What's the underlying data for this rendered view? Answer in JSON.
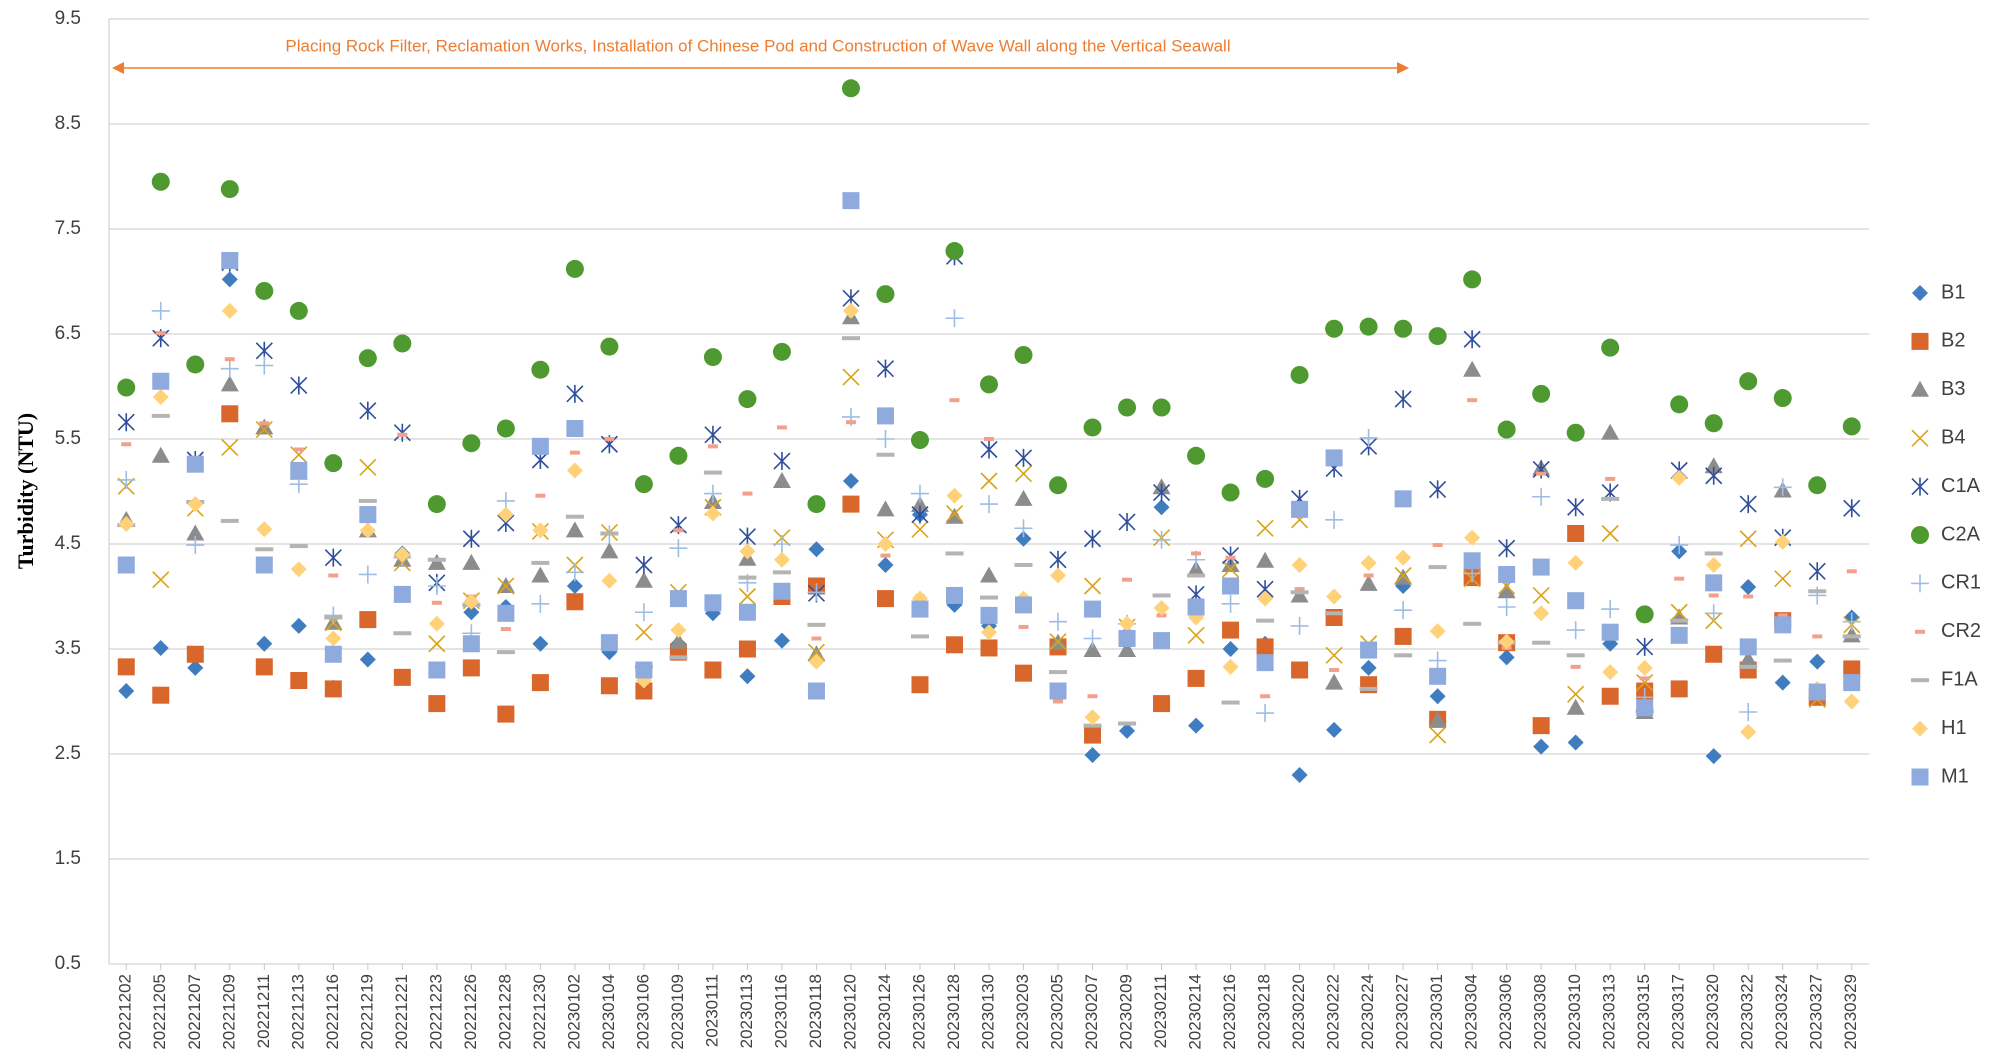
{
  "chart_data": {
    "type": "scatter",
    "y_label": "Turbidity (NTU)",
    "annotation": "Placing Rock Filter, Reclamation Works, Installation of Chinese Pod and Construction of Wave Wall along the Vertical Seawall",
    "categories": [
      "20221202",
      "20221205",
      "20221207",
      "20221209",
      "20221211",
      "20221213",
      "20221216",
      "20221219",
      "20221221",
      "20221223",
      "20221226",
      "20221228",
      "20221230",
      "20230102",
      "20230104",
      "20230106",
      "20230109",
      "20230111",
      "20230113",
      "20230116",
      "20230118",
      "20230120",
      "20230124",
      "20230126",
      "20230128",
      "20230130",
      "20230203",
      "20230205",
      "20230207",
      "20230209",
      "20230211",
      "20230214",
      "20230216",
      "20230218",
      "20230220",
      "20230222",
      "20230224",
      "20230227",
      "20230301",
      "20230304",
      "20230306",
      "20230308",
      "20230310",
      "20230313",
      "20230315",
      "20230317",
      "20230320",
      "20230322",
      "20230324",
      "20230327",
      "20230329"
    ],
    "ylim": [
      0.5,
      9.5
    ],
    "yticks": [
      0.5,
      1.5,
      2.5,
      3.5,
      4.5,
      5.5,
      6.5,
      7.5,
      8.5,
      9.5
    ],
    "grid": true,
    "legend": "right",
    "series": [
      {
        "name": "B1",
        "color": "#3f7cc0",
        "marker": "diamond",
        "values": [
          3.1,
          3.51,
          3.32,
          7.02,
          3.55,
          3.72,
          3.13,
          3.4,
          4.41,
          3.3,
          3.85,
          3.9,
          3.55,
          4.1,
          3.47,
          3.15,
          3.55,
          3.84,
          3.24,
          3.58,
          4.45,
          5.1,
          4.3,
          4.78,
          3.92,
          3.72,
          4.55,
          3.54,
          2.49,
          2.72,
          4.85,
          2.77,
          3.5,
          3.55,
          2.3,
          2.73,
          3.32,
          4.1,
          3.05,
          4.2,
          3.42,
          2.57,
          2.61,
          3.55,
          3.0,
          4.43,
          2.48,
          4.09,
          3.18,
          3.38,
          3.8
        ]
      },
      {
        "name": "B2",
        "color": "#d9662a",
        "marker": "square",
        "values": [
          3.33,
          3.06,
          3.45,
          5.74,
          3.33,
          3.2,
          3.12,
          3.78,
          3.23,
          2.98,
          3.32,
          2.88,
          3.18,
          3.95,
          3.15,
          3.1,
          3.47,
          3.3,
          3.5,
          4.0,
          4.1,
          4.88,
          3.98,
          3.16,
          3.54,
          3.51,
          3.27,
          3.52,
          2.68,
          3.6,
          2.98,
          3.22,
          3.68,
          3.52,
          3.3,
          3.8,
          3.16,
          3.62,
          2.83,
          4.18,
          3.56,
          2.77,
          4.6,
          3.05,
          3.1,
          3.12,
          3.45,
          3.3,
          3.77,
          3.04,
          3.31
        ]
      },
      {
        "name": "B3",
        "color": "#8c8c8c",
        "marker": "triangle",
        "values": [
          4.73,
          5.34,
          4.6,
          6.02,
          5.61,
          5.18,
          3.75,
          4.63,
          4.35,
          4.32,
          4.32,
          4.1,
          4.2,
          4.63,
          4.43,
          4.15,
          3.57,
          4.9,
          4.36,
          5.1,
          3.45,
          6.66,
          4.83,
          4.87,
          4.76,
          4.2,
          4.93,
          3.56,
          3.49,
          3.49,
          5.04,
          4.26,
          4.3,
          4.34,
          4.01,
          3.18,
          4.12,
          4.18,
          2.82,
          6.16,
          4.05,
          5.22,
          2.94,
          5.56,
          2.9,
          3.8,
          5.24,
          3.4,
          5.01,
          3.1,
          3.63
        ]
      },
      {
        "name": "B4",
        "color": "#d8a41a",
        "marker": "x",
        "values": [
          5.05,
          4.16,
          4.84,
          5.42,
          5.59,
          5.35,
          3.75,
          5.23,
          4.32,
          3.55,
          3.96,
          4.1,
          4.62,
          4.3,
          4.61,
          3.66,
          4.04,
          4.85,
          4.0,
          4.56,
          3.47,
          6.09,
          4.54,
          4.64,
          4.79,
          5.1,
          5.17,
          3.57,
          4.1,
          3.71,
          4.56,
          3.63,
          4.26,
          4.65,
          4.73,
          3.44,
          3.55,
          4.2,
          2.68,
          4.17,
          4.1,
          4.01,
          3.07,
          4.6,
          3.18,
          3.85,
          3.77,
          4.55,
          4.17,
          3.02,
          3.73
        ]
      },
      {
        "name": "C1A",
        "color": "#2f4e9c",
        "marker": "star",
        "values": [
          5.66,
          6.46,
          5.3,
          7.18,
          6.34,
          6.01,
          4.37,
          5.77,
          5.56,
          4.13,
          4.55,
          4.7,
          5.3,
          5.93,
          5.45,
          4.3,
          4.68,
          5.54,
          4.57,
          5.29,
          4.03,
          6.84,
          6.17,
          4.78,
          7.24,
          5.4,
          5.32,
          4.35,
          4.55,
          4.71,
          4.99,
          4.02,
          4.39,
          4.07,
          4.93,
          5.22,
          5.43,
          5.88,
          5.02,
          6.45,
          4.46,
          5.21,
          4.85,
          4.99,
          3.52,
          5.2,
          5.15,
          4.88,
          4.56,
          4.24,
          4.84
        ]
      },
      {
        "name": "C2A",
        "color": "#4f9a30",
        "marker": "circle",
        "values": [
          5.99,
          7.95,
          6.21,
          7.88,
          6.91,
          6.72,
          5.27,
          6.27,
          6.41,
          4.88,
          5.46,
          5.6,
          6.16,
          7.12,
          6.38,
          5.07,
          5.34,
          6.28,
          5.88,
          6.33,
          4.88,
          8.84,
          6.88,
          5.49,
          7.29,
          6.02,
          6.3,
          5.06,
          5.61,
          5.8,
          5.8,
          5.34,
          4.99,
          5.12,
          6.11,
          6.55,
          6.57,
          6.55,
          6.48,
          7.02,
          5.59,
          5.93,
          5.56,
          6.37,
          3.83,
          5.83,
          5.65,
          6.05,
          5.89,
          5.06,
          5.62
        ]
      },
      {
        "name": "CR1",
        "color": "#9dbde3",
        "marker": "plus",
        "values": [
          5.11,
          6.72,
          4.49,
          6.17,
          6.2,
          5.07,
          3.82,
          4.21,
          4.37,
          4.1,
          3.65,
          4.91,
          3.93,
          4.23,
          4.59,
          3.85,
          4.46,
          4.98,
          4.13,
          4.5,
          4.04,
          5.71,
          5.5,
          4.98,
          6.65,
          4.88,
          4.65,
          3.76,
          3.6,
          3.74,
          4.54,
          4.35,
          3.93,
          2.89,
          3.72,
          4.73,
          5.51,
          3.87,
          3.39,
          4.22,
          3.9,
          4.95,
          3.68,
          3.88,
          3.04,
          4.49,
          3.84,
          2.9,
          5.04,
          4.01,
          3.76
        ]
      },
      {
        "name": "CR2",
        "color": "#f2a08a",
        "marker": "dash",
        "values": [
          5.45,
          6.51,
          4.87,
          6.26,
          5.65,
          5.4,
          4.2,
          4.6,
          5.54,
          3.94,
          4.0,
          3.69,
          4.96,
          5.37,
          5.5,
          3.18,
          4.63,
          5.43,
          4.98,
          5.61,
          3.6,
          5.66,
          4.39,
          4.0,
          5.87,
          5.5,
          3.71,
          3.0,
          3.05,
          4.16,
          3.82,
          4.41,
          4.37,
          3.05,
          4.07,
          3.3,
          4.2,
          4.37,
          4.49,
          5.87,
          3.51,
          5.17,
          3.33,
          5.12,
          3.22,
          4.17,
          4.01,
          4.0,
          3.82,
          3.62,
          4.24
        ]
      },
      {
        "name": "F1A",
        "color": "#b4b4b4",
        "marker": "long-dash",
        "values": [
          4.68,
          5.72,
          4.9,
          4.72,
          4.45,
          4.48,
          3.8,
          4.91,
          3.65,
          4.35,
          3.92,
          3.47,
          4.32,
          4.76,
          4.6,
          3.33,
          3.42,
          5.18,
          4.18,
          4.23,
          3.73,
          6.46,
          5.35,
          3.62,
          4.41,
          3.99,
          4.3,
          3.28,
          2.77,
          2.79,
          4.01,
          4.2,
          2.99,
          3.77,
          4.04,
          3.84,
          3.12,
          3.44,
          4.28,
          3.74,
          3.56,
          3.56,
          3.44,
          4.93,
          2.91,
          3.77,
          4.41,
          3.33,
          3.39,
          4.05,
          3.62
        ]
      },
      {
        "name": "H1",
        "color": "#ffd27a",
        "marker": "diamond",
        "values": [
          4.69,
          5.9,
          4.88,
          6.72,
          4.64,
          4.26,
          3.6,
          4.63,
          4.4,
          3.74,
          3.95,
          4.78,
          4.63,
          5.2,
          4.15,
          3.2,
          3.68,
          4.79,
          4.43,
          4.35,
          3.38,
          6.72,
          4.5,
          3.98,
          4.96,
          3.66,
          3.98,
          4.2,
          2.85,
          3.74,
          3.89,
          3.8,
          3.33,
          3.98,
          4.3,
          4.0,
          4.32,
          4.37,
          3.67,
          4.56,
          3.57,
          3.84,
          4.32,
          3.28,
          3.32,
          5.13,
          4.3,
          2.71,
          4.52,
          3.12,
          3.0
        ]
      },
      {
        "name": "M1",
        "color": "#8faadc",
        "marker": "square",
        "values": [
          4.3,
          6.05,
          5.26,
          7.2,
          4.3,
          5.2,
          3.45,
          4.78,
          4.02,
          3.3,
          3.55,
          3.84,
          5.43,
          5.6,
          3.56,
          3.3,
          3.98,
          3.94,
          3.85,
          4.05,
          3.1,
          7.77,
          5.72,
          3.88,
          4.01,
          3.82,
          3.92,
          3.1,
          3.88,
          3.6,
          3.58,
          3.9,
          4.1,
          3.37,
          4.83,
          5.32,
          3.49,
          4.93,
          3.24,
          4.34,
          4.21,
          4.28,
          3.96,
          3.66,
          2.94,
          3.63,
          4.13,
          3.52,
          3.73,
          3.09,
          3.18
        ]
      }
    ]
  }
}
